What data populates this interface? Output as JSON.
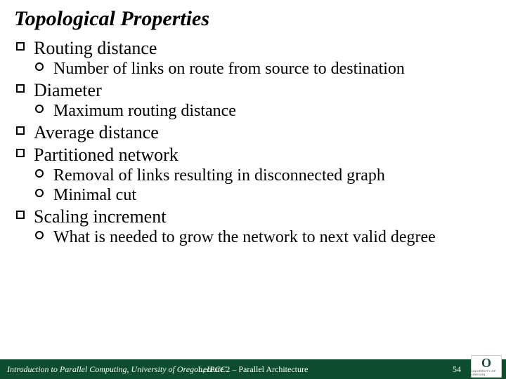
{
  "title": "Topological Properties",
  "title_fontsize": 30,
  "l1_fontsize": 26,
  "l2_fontsize": 24,
  "items": {
    "routing": "Routing distance",
    "routing_sub": "Number of links on route from source to destination",
    "diameter": "Diameter",
    "diameter_sub": "Maximum routing distance",
    "avg": "Average distance",
    "part": "Partitioned network",
    "part_sub1": "Removal of links resulting in disconnected graph",
    "part_sub2": "Minimal cut",
    "scaling": "Scaling increment",
    "scaling_sub": "What is needed to grow the network to next valid degree"
  },
  "footer": {
    "left": "Introduction to Parallel Computing, University of Oregon, IPCC",
    "center": "Lecture 2 – Parallel Architecture",
    "page": "54",
    "bg_color": "#0b4d2c",
    "fontsize": 12
  },
  "logo": {
    "o_color": "#154733",
    "o_text": "O",
    "sub_text": "UNIVERSITY OF OREGON",
    "sub_fontsize": 4
  }
}
